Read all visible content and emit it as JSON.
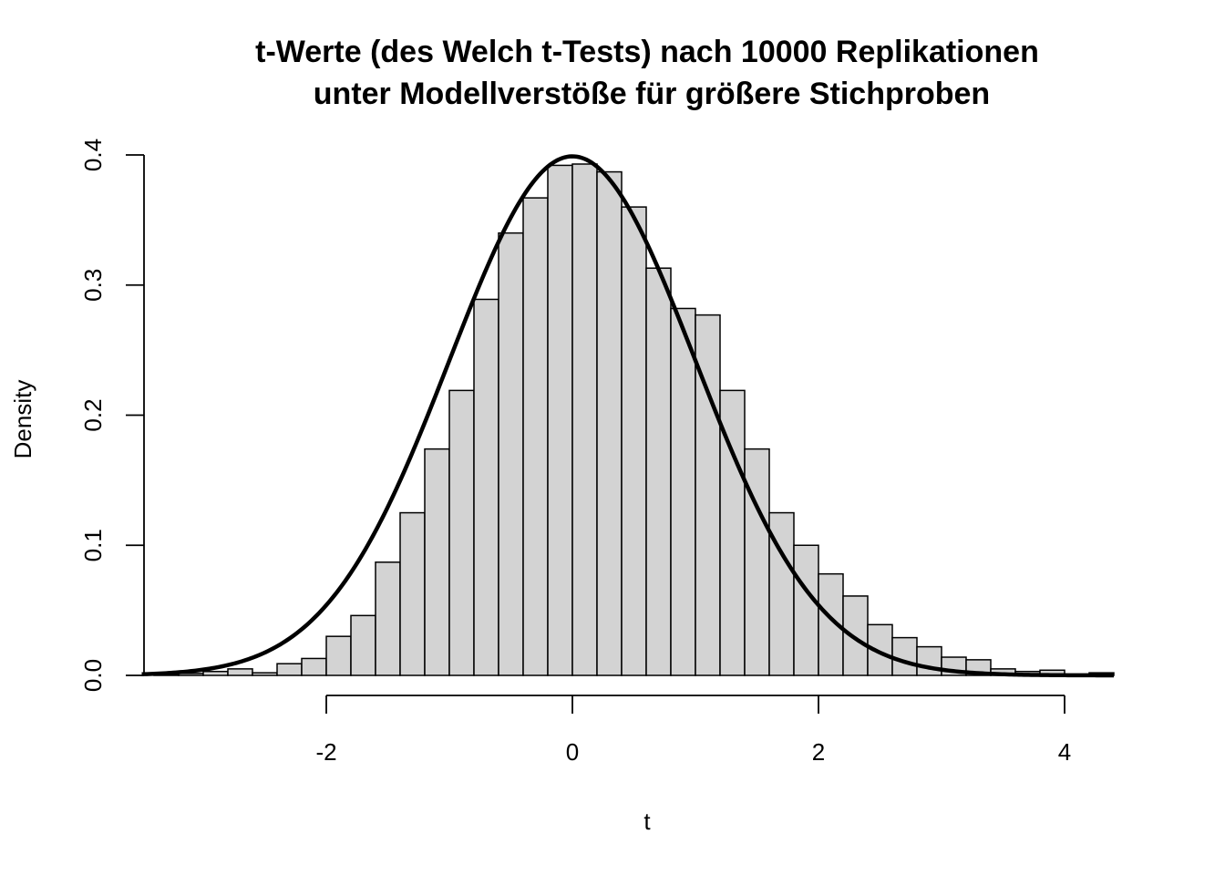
{
  "chart_data": {
    "type": "bar",
    "title_line1": "t-Werte (des Welch t-Tests) nach 10000 Replikationen",
    "title_line2": "unter Modellverstöße für größere Stichproben",
    "xlabel": "t",
    "ylabel": "Density",
    "xlim": [
      -3.5,
      4.4
    ],
    "ylim": [
      0,
      0.4
    ],
    "x_ticks": [
      -2,
      0,
      2,
      4
    ],
    "x_tick_labels": [
      "-2",
      "0",
      "2",
      "4"
    ],
    "y_ticks": [
      0.0,
      0.1,
      0.2,
      0.3,
      0.4
    ],
    "y_tick_labels": [
      "0.0",
      "0.1",
      "0.2",
      "0.3",
      "0.4"
    ],
    "bin_width": 0.2,
    "bins_start": [
      -3.4,
      -3.2,
      -3.0,
      -2.8,
      -2.6,
      -2.4,
      -2.2,
      -2.0,
      -1.8,
      -1.6,
      -1.4,
      -1.2,
      -1.0,
      -0.8,
      -0.6,
      -0.4,
      -0.2,
      0.0,
      0.2,
      0.4,
      0.6,
      0.8,
      1.0,
      1.2,
      1.4,
      1.6,
      1.8,
      2.0,
      2.2,
      2.4,
      2.6,
      2.8,
      3.0,
      3.2,
      3.4,
      3.6,
      3.8,
      4.0,
      4.2
    ],
    "density": [
      0.0005,
      0.0015,
      0.003,
      0.005,
      0.002,
      0.009,
      0.013,
      0.03,
      0.046,
      0.087,
      0.125,
      0.174,
      0.219,
      0.289,
      0.34,
      0.367,
      0.392,
      0.393,
      0.387,
      0.36,
      0.313,
      0.282,
      0.277,
      0.219,
      0.174,
      0.125,
      0.1,
      0.078,
      0.061,
      0.039,
      0.029,
      0.022,
      0.014,
      0.012,
      0.005,
      0.003,
      0.004,
      0.001,
      0.002
    ],
    "overlay_curve": {
      "type": "line",
      "description_key": "standard-normal-density",
      "mean": 0,
      "sd": 1
    },
    "grid": false,
    "legend": "none"
  }
}
